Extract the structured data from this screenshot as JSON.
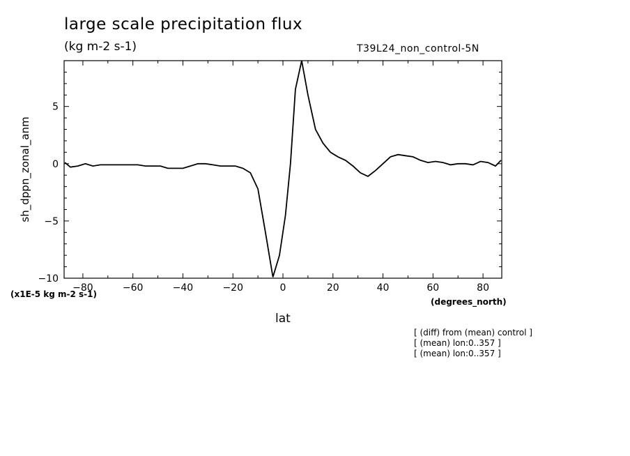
{
  "chart_data": {
    "type": "line",
    "title": "large scale precipitation flux",
    "subtitle": "(kg m-2 s-1)",
    "run_label": "T39L24_non_control-5N",
    "xlabel": "lat",
    "x_units": "(degrees_north)",
    "ylabel": "sh_dppn_zonal_anm",
    "y_scale_label": "(x1E-5 kg m-2 s-1)",
    "xlim": [
      -87.5,
      87.5
    ],
    "ylim": [
      -10,
      9
    ],
    "x_ticks": [
      -80,
      -60,
      -40,
      -20,
      0,
      20,
      40,
      60,
      80
    ],
    "y_ticks": [
      -10,
      -5,
      0,
      5
    ],
    "grid": false,
    "x": [
      -87.2,
      -85,
      -82,
      -79,
      -76,
      -73,
      -70,
      -67,
      -64,
      -61,
      -58,
      -55,
      -52,
      -49,
      -46,
      -43,
      -40,
      -37,
      -34,
      -31,
      -28,
      -25,
      -22,
      -19,
      -16,
      -13,
      -10,
      -7,
      -4,
      -1.4,
      1,
      3,
      5,
      7.5,
      10,
      13,
      16,
      19,
      22,
      25,
      28,
      31,
      34,
      37,
      40,
      43,
      46,
      49,
      52,
      55,
      58,
      61,
      64,
      67,
      70,
      73,
      76,
      79,
      82,
      85,
      87.2
    ],
    "y": [
      0.1,
      -0.3,
      -0.2,
      0,
      -0.2,
      -0.1,
      -0.1,
      -0.1,
      -0.1,
      -0.1,
      -0.1,
      -0.2,
      -0.2,
      -0.2,
      -0.4,
      -0.4,
      -0.4,
      -0.2,
      0,
      0,
      -0.1,
      -0.2,
      -0.2,
      -0.2,
      -0.4,
      -0.8,
      -2.2,
      -6,
      -9.9,
      -8,
      -4.5,
      0,
      6.5,
      9,
      6,
      3,
      1.8,
      1,
      0.6,
      0.3,
      -0.2,
      -0.8,
      -1.1,
      -0.6,
      0,
      0.6,
      0.8,
      0.7,
      0.6,
      0.3,
      0.1,
      0.2,
      0.1,
      -0.1,
      0,
      0,
      -0.1,
      0.2,
      0.1,
      -0.2,
      0.3
    ]
  },
  "notes": [
    "[ (diff) from (mean) control ]",
    "[ (mean) lon:0..357 ]",
    "[ (mean) lon:0..357 ]"
  ]
}
